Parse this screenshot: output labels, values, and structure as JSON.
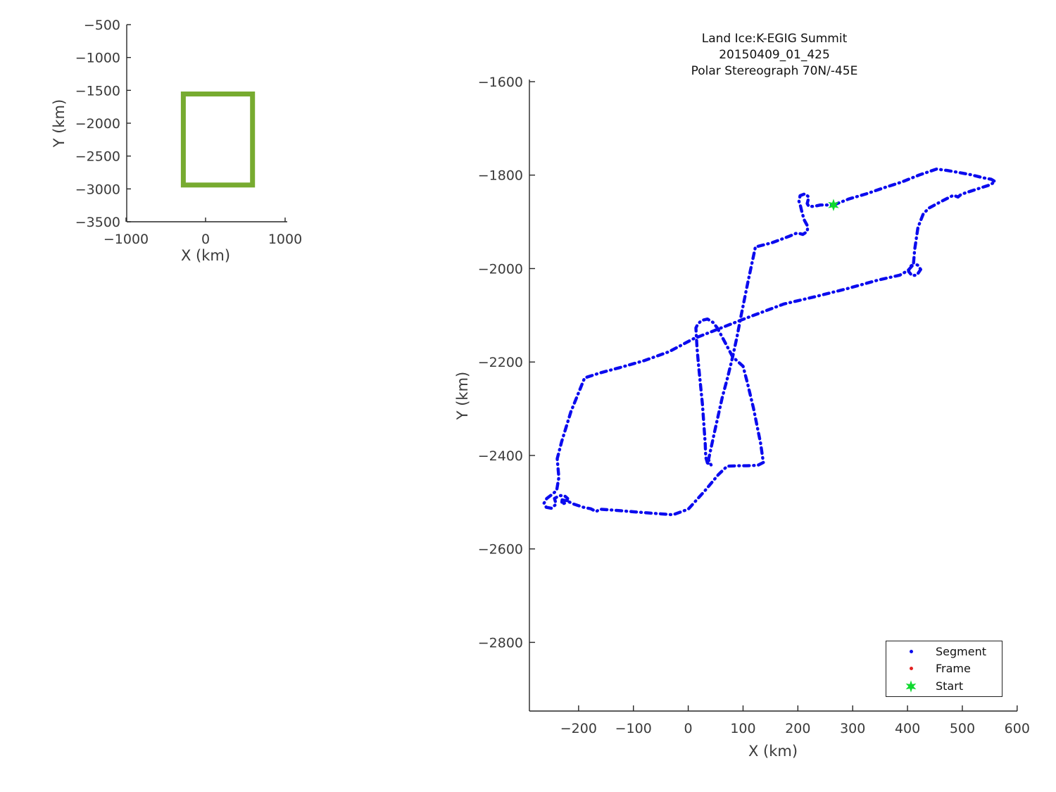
{
  "figure": {
    "background": "#ffffff",
    "title_lines": [
      "Land Ice:K-EGIG Summit",
      "20150409_01_425",
      "Polar Stereograph 70N/-45E"
    ]
  },
  "chart_data": [
    {
      "type": "line",
      "id": "overview",
      "xlabel": "X (km)",
      "ylabel": "Y (km)",
      "xlim": [
        -1000,
        1020
      ],
      "ylim": [
        -3500,
        -500
      ],
      "x_ticks": [
        -1000,
        0,
        1000
      ],
      "y_ticks": [
        -500,
        -1000,
        -1500,
        -2000,
        -2500,
        -3000,
        -3500
      ],
      "grid": false,
      "series": [
        {
          "name": "flight-extent-box",
          "shape": "rect",
          "color": "#77AB30",
          "linewidth": 7,
          "x_bounds": [
            -280,
            590
          ],
          "y_bounds": [
            -2940,
            -1555
          ]
        }
      ]
    },
    {
      "type": "line",
      "id": "flight-track",
      "xlabel": "X (km)",
      "ylabel": "Y (km)",
      "xlim": [
        -290,
        600
      ],
      "ylim": [
        -2947,
        -1591
      ],
      "x_ticks": [
        -200,
        -100,
        0,
        100,
        200,
        300,
        400,
        500,
        600
      ],
      "y_ticks": [
        -1600,
        -1800,
        -2000,
        -2200,
        -2400,
        -2600,
        -2800
      ],
      "grid": false,
      "legend": [
        {
          "label": "Segment",
          "marker": "dot",
          "color": "#0B0BEE"
        },
        {
          "label": "Frame",
          "marker": "dot",
          "color": "#E32222"
        },
        {
          "label": "Start",
          "marker": "hexagram",
          "color": "#0FD92F"
        }
      ],
      "legend_position": "lower right",
      "series": [
        {
          "name": "segment-track",
          "color": "#0B0BEE",
          "style": "dash-dot",
          "linewidth": 4.4,
          "points": [
            [
              265,
              -1864
            ],
            [
              293,
              -1851
            ],
            [
              325,
              -1840
            ],
            [
              357,
              -1827
            ],
            [
              389,
              -1815
            ],
            [
              421,
              -1800
            ],
            [
              453,
              -1787
            ],
            [
              472,
              -1790
            ],
            [
              492,
              -1794
            ],
            [
              515,
              -1799
            ],
            [
              539,
              -1806
            ],
            [
              553,
              -1809
            ],
            [
              560,
              -1814
            ],
            [
              550,
              -1821
            ],
            [
              524,
              -1831
            ],
            [
              498,
              -1841
            ],
            [
              492,
              -1847
            ],
            [
              484,
              -1843
            ],
            [
              462,
              -1856
            ],
            [
              440,
              -1870
            ],
            [
              429,
              -1882
            ],
            [
              419,
              -1912
            ],
            [
              413,
              -1960
            ],
            [
              411,
              -1989
            ],
            [
              419,
              -1993
            ],
            [
              424,
              -2002
            ],
            [
              417,
              -2014
            ],
            [
              408,
              -2015
            ],
            [
              402,
              -2006
            ],
            [
              404,
              -1996
            ],
            [
              411,
              -1991
            ],
            [
              401,
              -2004
            ],
            [
              386,
              -2014
            ],
            [
              345,
              -2025
            ],
            [
              290,
              -2043
            ],
            [
              232,
              -2060
            ],
            [
              174,
              -2076
            ],
            [
              140,
              -2091
            ],
            [
              106,
              -2106
            ],
            [
              60,
              -2127
            ],
            [
              10,
              -2150
            ],
            [
              -35,
              -2178
            ],
            [
              -80,
              -2197
            ],
            [
              -125,
              -2212
            ],
            [
              -160,
              -2223
            ],
            [
              -189,
              -2234
            ],
            [
              -214,
              -2306
            ],
            [
              -231,
              -2371
            ],
            [
              -239,
              -2407
            ],
            [
              -236,
              -2447
            ],
            [
              -240,
              -2475
            ],
            [
              -249,
              -2484
            ],
            [
              -258,
              -2492
            ],
            [
              -263,
              -2502
            ],
            [
              -259,
              -2511
            ],
            [
              -249,
              -2513
            ],
            [
              -241,
              -2504
            ],
            [
              -244,
              -2492
            ],
            [
              -235,
              -2486
            ],
            [
              -226,
              -2486
            ],
            [
              -220,
              -2492
            ],
            [
              -222,
              -2501
            ],
            [
              -231,
              -2504
            ],
            [
              -230,
              -2495
            ],
            [
              -220,
              -2498
            ],
            [
              -209,
              -2504
            ],
            [
              -191,
              -2511
            ],
            [
              -178,
              -2514
            ],
            [
              -168,
              -2520
            ],
            [
              -161,
              -2515
            ],
            [
              -137,
              -2517
            ],
            [
              -105,
              -2520
            ],
            [
              -73,
              -2523
            ],
            [
              -50,
              -2525
            ],
            [
              -28,
              -2527
            ],
            [
              0,
              -2515
            ],
            [
              30,
              -2476
            ],
            [
              55,
              -2441
            ],
            [
              71,
              -2423
            ],
            [
              90,
              -2422
            ],
            [
              107,
              -2422
            ],
            [
              127,
              -2421
            ],
            [
              137,
              -2415
            ],
            [
              132,
              -2374
            ],
            [
              119,
              -2299
            ],
            [
              108,
              -2245
            ],
            [
              100,
              -2209
            ],
            [
              81,
              -2189
            ],
            [
              68,
              -2160
            ],
            [
              53,
              -2127
            ],
            [
              45,
              -2115
            ],
            [
              35,
              -2108
            ],
            [
              24,
              -2111
            ],
            [
              17,
              -2120
            ],
            [
              14,
              -2127
            ],
            [
              16,
              -2170
            ],
            [
              19,
              -2209
            ],
            [
              26,
              -2291
            ],
            [
              31,
              -2374
            ],
            [
              32,
              -2404
            ],
            [
              35,
              -2416
            ],
            [
              42,
              -2421
            ],
            [
              37,
              -2409
            ],
            [
              49,
              -2344
            ],
            [
              62,
              -2276
            ],
            [
              72,
              -2232
            ],
            [
              81,
              -2189
            ],
            [
              89,
              -2146
            ],
            [
              96,
              -2103
            ],
            [
              109,
              -2028
            ],
            [
              122,
              -1957
            ],
            [
              122,
              -1954
            ],
            [
              152,
              -1945
            ],
            [
              184,
              -1931
            ],
            [
              196,
              -1925
            ],
            [
              200,
              -1924
            ],
            [
              209,
              -1927
            ],
            [
              217,
              -1921
            ],
            [
              218,
              -1910
            ],
            [
              212,
              -1897
            ],
            [
              208,
              -1882
            ],
            [
              205,
              -1867
            ],
            [
              202,
              -1856
            ],
            [
              204,
              -1844
            ],
            [
              213,
              -1840
            ],
            [
              220,
              -1847
            ],
            [
              217,
              -1861
            ],
            [
              220,
              -1867
            ],
            [
              229,
              -1867
            ],
            [
              241,
              -1864
            ],
            [
              265,
              -1864
            ]
          ]
        },
        {
          "name": "start-point",
          "color": "#0FD92F",
          "marker": "hexagram",
          "point": [
            265,
            -1864
          ]
        }
      ]
    }
  ]
}
